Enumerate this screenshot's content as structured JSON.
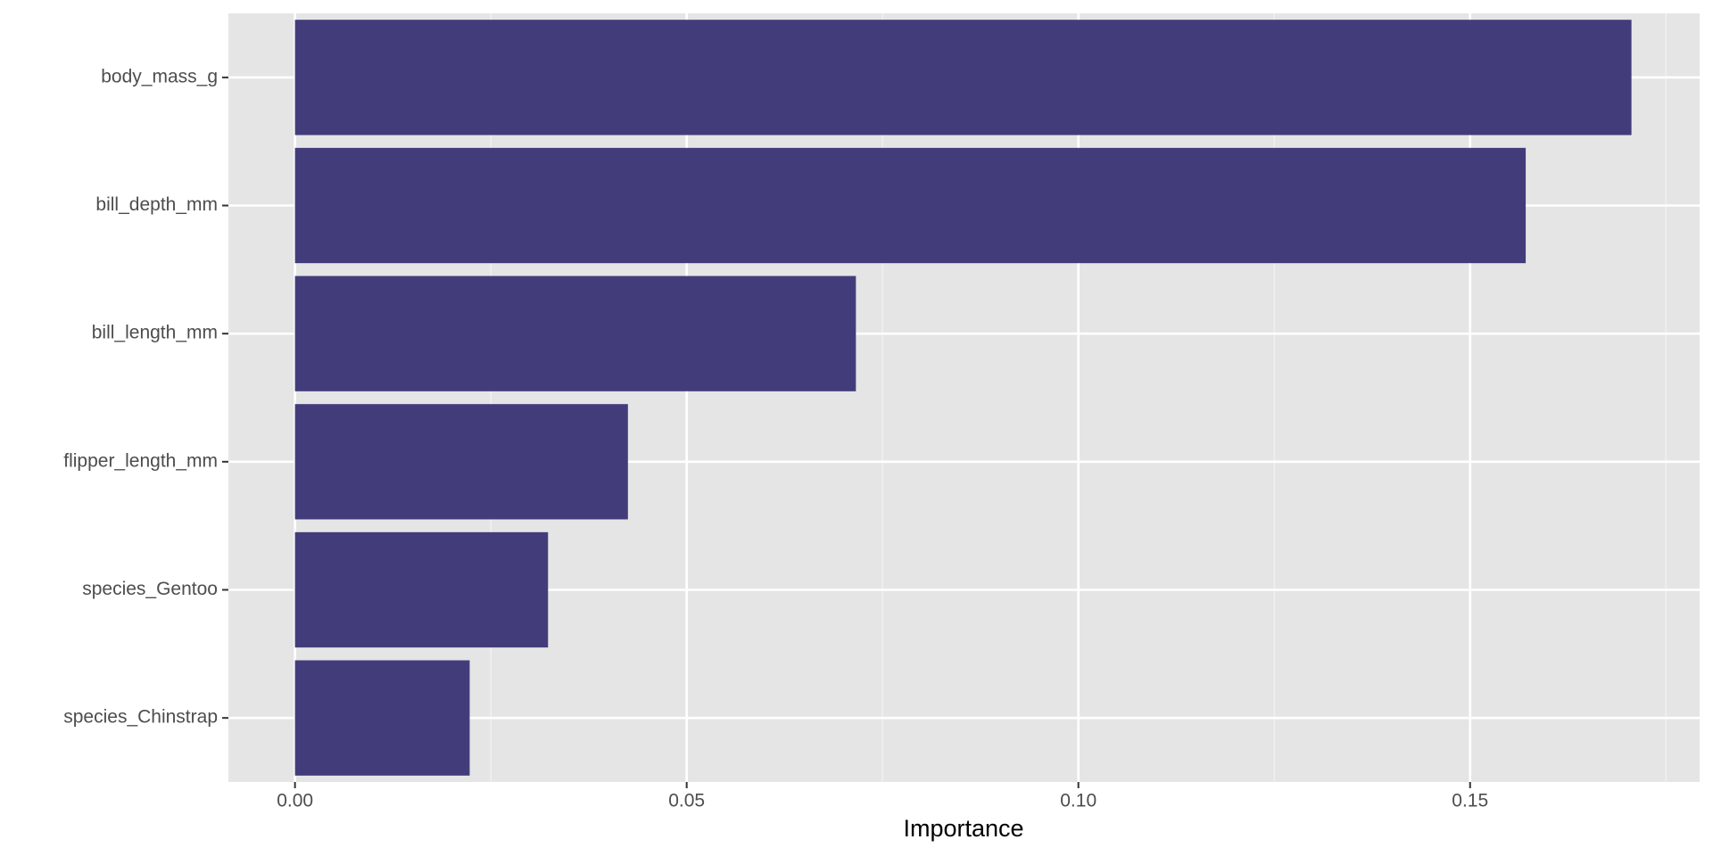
{
  "chart_data": {
    "type": "bar",
    "orientation": "horizontal",
    "x_label": "Importance",
    "categories": [
      "body_mass_g",
      "bill_depth_mm",
      "bill_length_mm",
      "flipper_length_mm",
      "species_Gentoo",
      "species_Chinstrap"
    ],
    "values": [
      0.1706,
      0.1571,
      0.0716,
      0.0425,
      0.0323,
      0.0223
    ],
    "color": "#3c3776",
    "xlim": [
      -0.0085,
      0.1793
    ],
    "xticks": [
      {
        "value": 0,
        "label": "0.00"
      },
      {
        "value": 0.05,
        "label": "0.05"
      },
      {
        "value": 0.1,
        "label": "0.10"
      },
      {
        "value": 0.15,
        "label": "0.15"
      }
    ],
    "minor_xticks": [
      0.025,
      0.075,
      0.125,
      0.175
    ],
    "grid": true
  }
}
